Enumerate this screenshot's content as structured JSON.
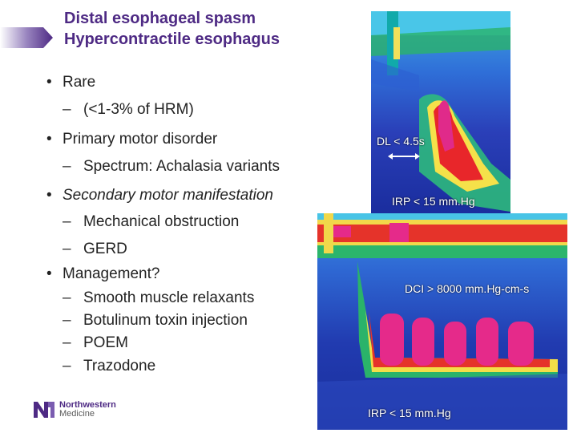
{
  "slide": {
    "title_line1": "Distal esophageal spasm",
    "title_line2": "Hypercontractile esophagus",
    "accent_color": "#4e2a84"
  },
  "bullets": {
    "rare": "Rare",
    "rare_sub": "(<1-3% of HRM)",
    "primary": "Primary motor disorder",
    "primary_sub": "Spectrum: Achalasia variants",
    "secondary": "Secondary motor manifestation",
    "secondary_sub1": "Mechanical obstruction",
    "secondary_sub2": "GERD",
    "management": "Management?",
    "management_sub1": "Smooth muscle relaxants",
    "management_sub2": "Botulinum toxin injection",
    "management_sub3": "POEM",
    "management_sub4": "Trazodone"
  },
  "figures": {
    "top_dl_label": "DL < 4.5s",
    "top_irp_label": "IRP < 15 mm.Hg",
    "bottom_dci_label": "DCI > 8000 mm.Hg-cm-s",
    "bottom_irp_label": "IRP < 15 mm.Hg"
  },
  "logo": {
    "line1": "Northwestern",
    "line2": "Medicine"
  }
}
